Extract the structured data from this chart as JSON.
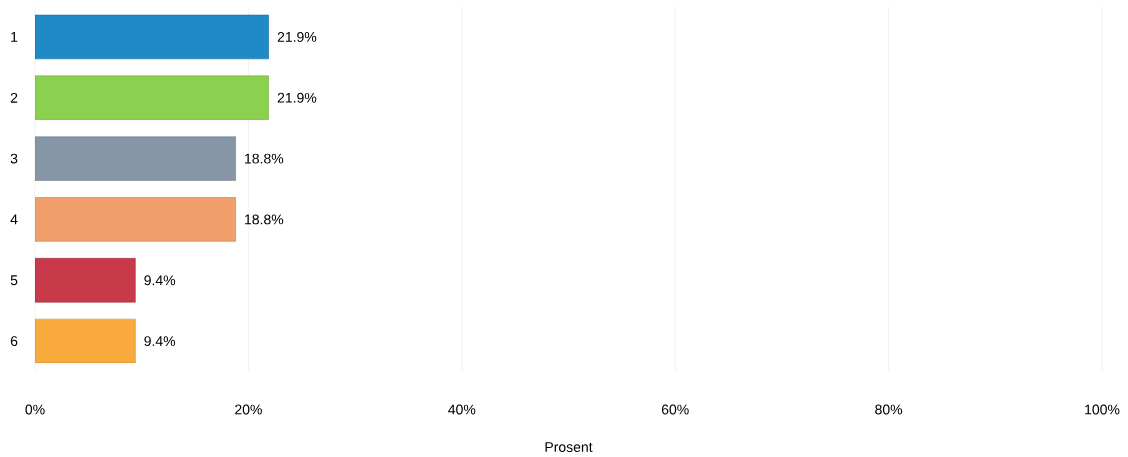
{
  "chart_data": {
    "type": "bar",
    "orientation": "horizontal",
    "xlabel": "Prosent",
    "categories": [
      "1",
      "2",
      "3",
      "4",
      "5",
      "6"
    ],
    "values": [
      21.9,
      21.9,
      18.8,
      18.8,
      9.4,
      9.4
    ],
    "value_labels": [
      "21.9%",
      "21.9%",
      "18.8%",
      "18.8%",
      "9.4%",
      "9.4%"
    ],
    "colors": [
      "#1f8ac6",
      "#8cd04f",
      "#8696a6",
      "#f09f6c",
      "#c83a4a",
      "#f8ab3c"
    ],
    "xlim": [
      0,
      100
    ],
    "xticks": [
      {
        "value": 0,
        "label": "0%"
      },
      {
        "value": 20,
        "label": "20%"
      },
      {
        "value": 40,
        "label": "40%"
      },
      {
        "value": 60,
        "label": "60%"
      },
      {
        "value": 80,
        "label": "80%"
      },
      {
        "value": 100,
        "label": "100%"
      }
    ],
    "grid": "x"
  }
}
